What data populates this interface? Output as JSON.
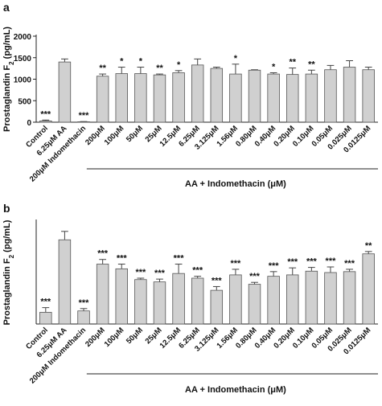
{
  "chart_data": [
    {
      "type": "bar",
      "panel": "a",
      "ylabel": [
        "Prostaglandin F",
        "2",
        " (pg/mL)"
      ],
      "group_label": "AA + Indomethacin (μM)",
      "categories": [
        "Control",
        "6.25μM AA",
        "200μM Indomethacin",
        "200μM",
        "100μM",
        "50μM",
        "25μM",
        "12.5μM",
        "6.25μM",
        "3.125μM",
        "1.56μM",
        "0.80μM",
        "0.40μM",
        "0.20μM",
        "0.10μM",
        "0.05μM",
        "0.025μM",
        "0.0125μM"
      ],
      "values": [
        30,
        1400,
        10,
        1070,
        1130,
        1130,
        1100,
        1150,
        1330,
        1250,
        1120,
        1210,
        1120,
        1110,
        1120,
        1220,
        1280,
        1220
      ],
      "errors": [
        20,
        70,
        5,
        50,
        150,
        150,
        20,
        50,
        140,
        30,
        230,
        10,
        30,
        150,
        90,
        100,
        150,
        60
      ],
      "stars": [
        "***",
        null,
        "***",
        "**",
        "*",
        "*",
        "**",
        "*",
        null,
        null,
        "*",
        null,
        "*",
        "**",
        "**",
        null,
        null,
        null
      ],
      "color": "#d0d0d0",
      "ylim": [
        0,
        2000
      ],
      "yticks": [
        0,
        500,
        1000,
        1500,
        2000
      ]
    },
    {
      "type": "bar",
      "panel": "b",
      "ylabel": [
        "Prostaglandin F",
        "2",
        " (pg/mL)"
      ],
      "group_label": "AA + Indomethacin (μM)",
      "categories": [
        "Control",
        "6.25μM AA",
        "200μM Indomethacin",
        "200μM",
        "100μM",
        "50μM",
        "25μM",
        "12.5μM",
        "6.25μM",
        "3.125μM",
        "1.56μM",
        "0.80μM",
        "0.40μM",
        "0.20μM",
        "0.10μM",
        "0.05μM",
        "0.025μM",
        "0.0125μM"
      ],
      "values": [
        25,
        180,
        28,
        128,
        118,
        95,
        90,
        108,
        98,
        72,
        105,
        85,
        102,
        105,
        113,
        110,
        112,
        150
      ],
      "errors": [
        10,
        18,
        5,
        10,
        10,
        3,
        6,
        20,
        4,
        8,
        12,
        4,
        10,
        15,
        8,
        12,
        5,
        5
      ],
      "stars": [
        "***",
        null,
        "***",
        "***",
        "***",
        "***",
        "***",
        "***",
        "***",
        "***",
        "***",
        "***",
        "***",
        "***",
        "***",
        "***",
        "***",
        "**"
      ],
      "color": "#d0d0d0",
      "ylim": [
        0,
        220
      ]
    }
  ]
}
